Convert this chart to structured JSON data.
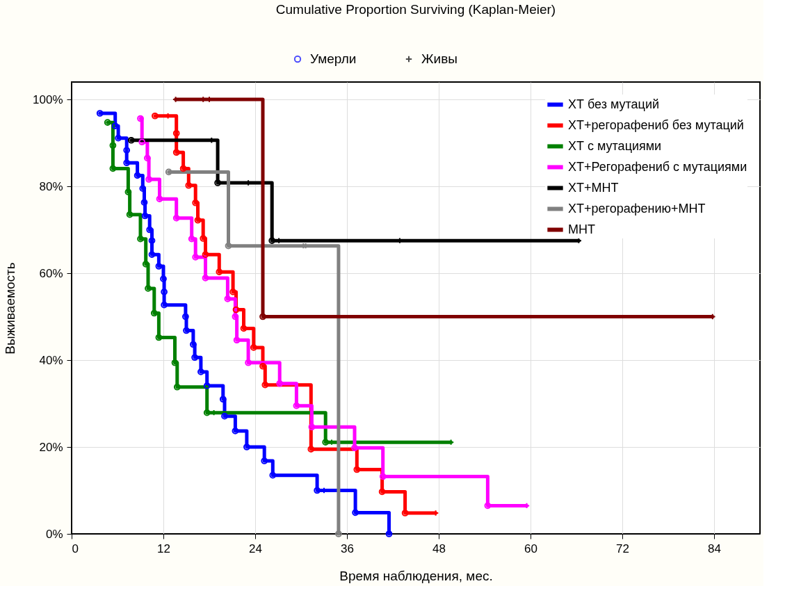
{
  "chart_data": {
    "type": "step",
    "title": "Cumulative Proportion Surviving (Kaplan-Meier)",
    "xlabel": "Время наблюдения, мес.",
    "ylabel": "Выживаемость",
    "xlim": [
      0,
      90
    ],
    "xticks": [
      0,
      12,
      24,
      36,
      48,
      60,
      72,
      84
    ],
    "ylim": [
      0,
      104
    ],
    "yticks": [
      {
        "value": 0,
        "label": "0%"
      },
      {
        "value": 20,
        "label": "20%"
      },
      {
        "value": 40,
        "label": "40%"
      },
      {
        "value": 60,
        "label": "60%"
      },
      {
        "value": 80,
        "label": "80%"
      },
      {
        "value": 100,
        "label": "100%"
      }
    ],
    "grid": true,
    "legend": "top right",
    "series": [
      {
        "name": "ХТ без мутаций",
        "color": "#0000ff",
        "x": [
          3.7,
          5.7,
          6.1,
          7.2,
          7.2,
          8.6,
          9.3,
          9.5,
          9.6,
          10.2,
          10.5,
          10.5,
          11.4,
          12.0,
          12.1,
          12.1,
          14.9,
          15.0,
          15.9,
          16.1,
          16.9,
          17.7,
          19.8,
          20.0,
          21.4,
          22.9,
          25.2,
          26.3,
          32.1,
          37.1,
          41.5
        ],
        "values": [
          96.8,
          93.9,
          91.1,
          88.3,
          85.4,
          82.5,
          79.5,
          76.3,
          73.2,
          70,
          67.5,
          64.3,
          61.6,
          58.7,
          55.7,
          52.7,
          50,
          46.8,
          43.6,
          40.6,
          37.3,
          34.1,
          31,
          27.1,
          23.7,
          20,
          16.8,
          13.5,
          10,
          4.9,
          0
        ]
      },
      {
        "name": "ХТ+регорафениб без мутаций",
        "color": "#ff0000",
        "x": [
          10.9,
          13.7,
          13.7,
          14.6,
          15.3,
          16.2,
          16.5,
          17.2,
          17.5,
          19.3,
          21.1,
          21.5,
          22.5,
          23.8,
          25.0,
          25.3,
          31.3,
          37.3,
          40.6,
          43.6,
          47.6
        ],
        "values": [
          96.2,
          92.2,
          87.8,
          84.1,
          80.2,
          76.2,
          72.2,
          68,
          64.3,
          60.3,
          55.7,
          51.6,
          47.3,
          42.9,
          38.6,
          34.3,
          19.5,
          14.8,
          9.7,
          4.8,
          4.8
        ]
      },
      {
        "name": "ХТ с мутациями",
        "color": "#008000",
        "x": [
          4.7,
          5.4,
          5.4,
          7.4,
          7.6,
          9.0,
          9.7,
          10.0,
          10.8,
          11.4,
          13.5,
          13.8,
          17.7,
          33.2,
          49.6
        ],
        "values": [
          94.7,
          89.4,
          84.1,
          78.7,
          73.5,
          67.9,
          62.1,
          56.5,
          50.8,
          45.2,
          39.4,
          33.8,
          27.9,
          21.1,
          21.1
        ]
      },
      {
        "name": "ХТ+Регорафениб с мутациями",
        "color": "#ff00ff",
        "x": [
          9.0,
          9.2,
          9.9,
          10.1,
          11.5,
          13.7,
          15.7,
          16.2,
          17.5,
          20.4,
          21.4,
          21.6,
          23.1,
          27.2,
          29.4,
          31.4,
          37.0,
          40.7,
          54.4,
          59.5
        ],
        "values": [
          95.6,
          90.2,
          86.5,
          81.6,
          77.1,
          72.7,
          67.9,
          63.7,
          58.9,
          54.1,
          50,
          44.6,
          39.4,
          34.6,
          29.5,
          24.6,
          19.8,
          13.2,
          6.5,
          6.5
        ]
      },
      {
        "name": "ХТ+МНТ",
        "color": "#000000",
        "x": [
          7.8,
          19.1,
          26.2,
          66.3
        ],
        "values": [
          90.6,
          80.8,
          67.5,
          67.5
        ]
      },
      {
        "name": "ХТ+регорафению+МНТ",
        "color": "#808080",
        "x": [
          12.7,
          20.5,
          34.9
        ],
        "values": [
          83.3,
          66.3,
          0
        ]
      },
      {
        "name": "МНТ",
        "color": "#800000",
        "x": [
          13.6,
          25.0,
          83.8
        ],
        "values": [
          100,
          50,
          50
        ]
      },
      {
        "type": "scatter",
        "name": "Умерли",
        "color": "#0000ff",
        "marker": "circle",
        "x": [
          3.7,
          5.7,
          6.1,
          7.2,
          7.2,
          8.6,
          9.3,
          9.5,
          9.6,
          10.2,
          10.5,
          10.5,
          11.4,
          12.0,
          12.1,
          12.1,
          14.9,
          15.0,
          15.9,
          16.1,
          16.9,
          17.7,
          19.8,
          20.0,
          21.4,
          22.9,
          25.2,
          26.3,
          32.1,
          37.1,
          41.5,
          10.9,
          13.7,
          13.7,
          14.6,
          15.3,
          16.2,
          16.5,
          17.2,
          17.5,
          19.3,
          21.1,
          21.5,
          22.5,
          23.8,
          25.0,
          25.3,
          31.3,
          37.3,
          40.6,
          43.6,
          4.7,
          5.4,
          5.4,
          7.4,
          7.6,
          9.0,
          9.7,
          10.0,
          10.8,
          11.4,
          13.5,
          13.8,
          17.7,
          33.2,
          9.0,
          9.2,
          9.9,
          10.1,
          11.5,
          13.7,
          15.7,
          16.2,
          17.5,
          20.4,
          21.4,
          21.6,
          23.1,
          27.2,
          29.4,
          31.4,
          37.0,
          40.7,
          54.4,
          7.8,
          19.1,
          26.2,
          12.7,
          20.5,
          34.9,
          25.0
        ],
        "values": [
          96.8,
          93.9,
          91.1,
          88.3,
          85.4,
          82.5,
          79.5,
          76.3,
          73.2,
          70,
          67.5,
          64.3,
          61.6,
          58.7,
          55.7,
          52.7,
          50,
          46.8,
          43.6,
          40.6,
          37.3,
          34.1,
          31,
          27.1,
          23.7,
          20,
          16.8,
          13.5,
          10,
          4.9,
          0,
          96.2,
          92.2,
          87.8,
          84.1,
          80.2,
          76.2,
          72.2,
          68,
          64.3,
          60.3,
          55.7,
          51.6,
          47.3,
          42.9,
          38.6,
          34.3,
          19.5,
          14.8,
          9.7,
          4.8,
          94.7,
          89.4,
          84.1,
          78.7,
          73.5,
          67.9,
          62.1,
          56.5,
          50.8,
          45.2,
          39.4,
          33.8,
          27.9,
          21.1,
          95.6,
          90.2,
          86.5,
          81.6,
          77.1,
          72.7,
          67.9,
          63.7,
          58.9,
          54.1,
          50,
          44.6,
          39.4,
          34.6,
          29.5,
          24.6,
          19.8,
          13.2,
          6.5,
          90.6,
          80.8,
          67.5,
          83.3,
          66.3,
          0,
          50
        ],
        "colors": [
          "#0000ff",
          "#0000ff",
          "#0000ff",
          "#0000ff",
          "#0000ff",
          "#0000ff",
          "#0000ff",
          "#0000ff",
          "#0000ff",
          "#0000ff",
          "#0000ff",
          "#0000ff",
          "#0000ff",
          "#0000ff",
          "#0000ff",
          "#0000ff",
          "#0000ff",
          "#0000ff",
          "#0000ff",
          "#0000ff",
          "#0000ff",
          "#0000ff",
          "#0000ff",
          "#0000ff",
          "#0000ff",
          "#0000ff",
          "#0000ff",
          "#0000ff",
          "#0000ff",
          "#0000ff",
          "#0000ff",
          "#ff0000",
          "#ff0000",
          "#ff0000",
          "#ff0000",
          "#ff0000",
          "#ff0000",
          "#ff0000",
          "#ff0000",
          "#ff0000",
          "#ff0000",
          "#ff0000",
          "#ff0000",
          "#ff0000",
          "#ff0000",
          "#ff0000",
          "#ff0000",
          "#ff0000",
          "#ff0000",
          "#ff0000",
          "#ff0000",
          "#008000",
          "#008000",
          "#008000",
          "#008000",
          "#008000",
          "#008000",
          "#008000",
          "#008000",
          "#008000",
          "#008000",
          "#008000",
          "#008000",
          "#008000",
          "#008000",
          "#ff00ff",
          "#ff00ff",
          "#ff00ff",
          "#ff00ff",
          "#ff00ff",
          "#ff00ff",
          "#ff00ff",
          "#ff00ff",
          "#ff00ff",
          "#ff00ff",
          "#ff00ff",
          "#ff00ff",
          "#ff00ff",
          "#ff00ff",
          "#ff00ff",
          "#ff00ff",
          "#ff00ff",
          "#ff00ff",
          "#ff00ff",
          "#000000",
          "#000000",
          "#000000",
          "#808080",
          "#808080",
          "#808080",
          "#800000"
        ]
      },
      {
        "type": "scatter",
        "name": "Живы",
        "color": "#000000",
        "marker": "cross",
        "x": [
          12.6,
          47.6,
          33.0,
          18.6,
          34.0,
          49.6,
          59.5,
          18.3,
          23.1,
          27.1,
          42.9,
          66.3,
          30.3,
          30.6,
          13.6,
          17.2,
          18.0,
          83.8
        ],
        "values": [
          96.2,
          4.8,
          10,
          27.9,
          21.1,
          21.1,
          6.5,
          90.6,
          80.8,
          67.5,
          67.5,
          67.5,
          66.3,
          66.3,
          100,
          100,
          100,
          50
        ],
        "colors": [
          "#ff0000",
          "#ff0000",
          "#0000ff",
          "#008000",
          "#008000",
          "#008000",
          "#ff00ff",
          "#000000",
          "#000000",
          "#000000",
          "#000000",
          "#000000",
          "#808080",
          "#808080",
          "#800000",
          "#800000",
          "#800000",
          "#800000"
        ]
      }
    ]
  }
}
